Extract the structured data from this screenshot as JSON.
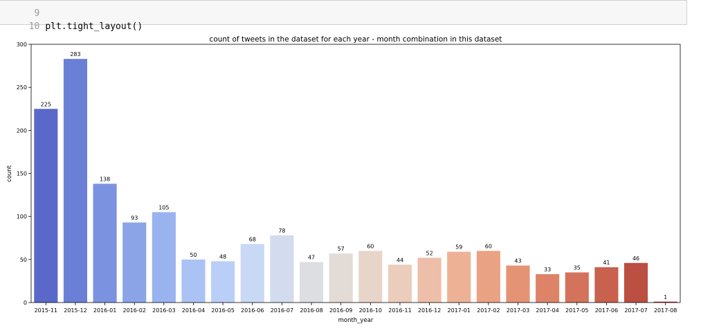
{
  "code_cell": {
    "lines": [
      {
        "number": "9",
        "code": ""
      },
      {
        "number": "10",
        "code": "plt.tight_layout()"
      }
    ]
  },
  "chart_data": {
    "type": "bar",
    "title": "count of tweets in the dataset for each year - month combination in this dataset",
    "xlabel": "month_year",
    "ylabel": "count",
    "ylim": [
      0,
      300
    ],
    "yticks": [
      0,
      50,
      100,
      150,
      200,
      250,
      300
    ],
    "grid": false,
    "categories": [
      "2015-11",
      "2015-12",
      "2016-01",
      "2016-02",
      "2016-03",
      "2016-04",
      "2016-05",
      "2016-06",
      "2016-07",
      "2016-08",
      "2016-09",
      "2016-10",
      "2016-11",
      "2016-12",
      "2017-01",
      "2017-02",
      "2017-03",
      "2017-04",
      "2017-05",
      "2017-06",
      "2017-07",
      "2017-08"
    ],
    "values": [
      225,
      283,
      138,
      93,
      105,
      50,
      48,
      68,
      78,
      47,
      57,
      60,
      44,
      52,
      59,
      60,
      43,
      33,
      35,
      41,
      46,
      1
    ],
    "colors": [
      "#5a69c9",
      "#6a7fd6",
      "#7b92e0",
      "#8ba4e8",
      "#99b3ef",
      "#abc2f5",
      "#bacff8",
      "#c8d8f5",
      "#d3dcee",
      "#dcdee2",
      "#e3dbd6",
      "#e8d5ca",
      "#ecccbc",
      "#edbfa8",
      "#edb296",
      "#eaa284",
      "#e59375",
      "#dd8468",
      "#d4735b",
      "#c8614e",
      "#bb4f41",
      "#b2182b"
    ]
  }
}
